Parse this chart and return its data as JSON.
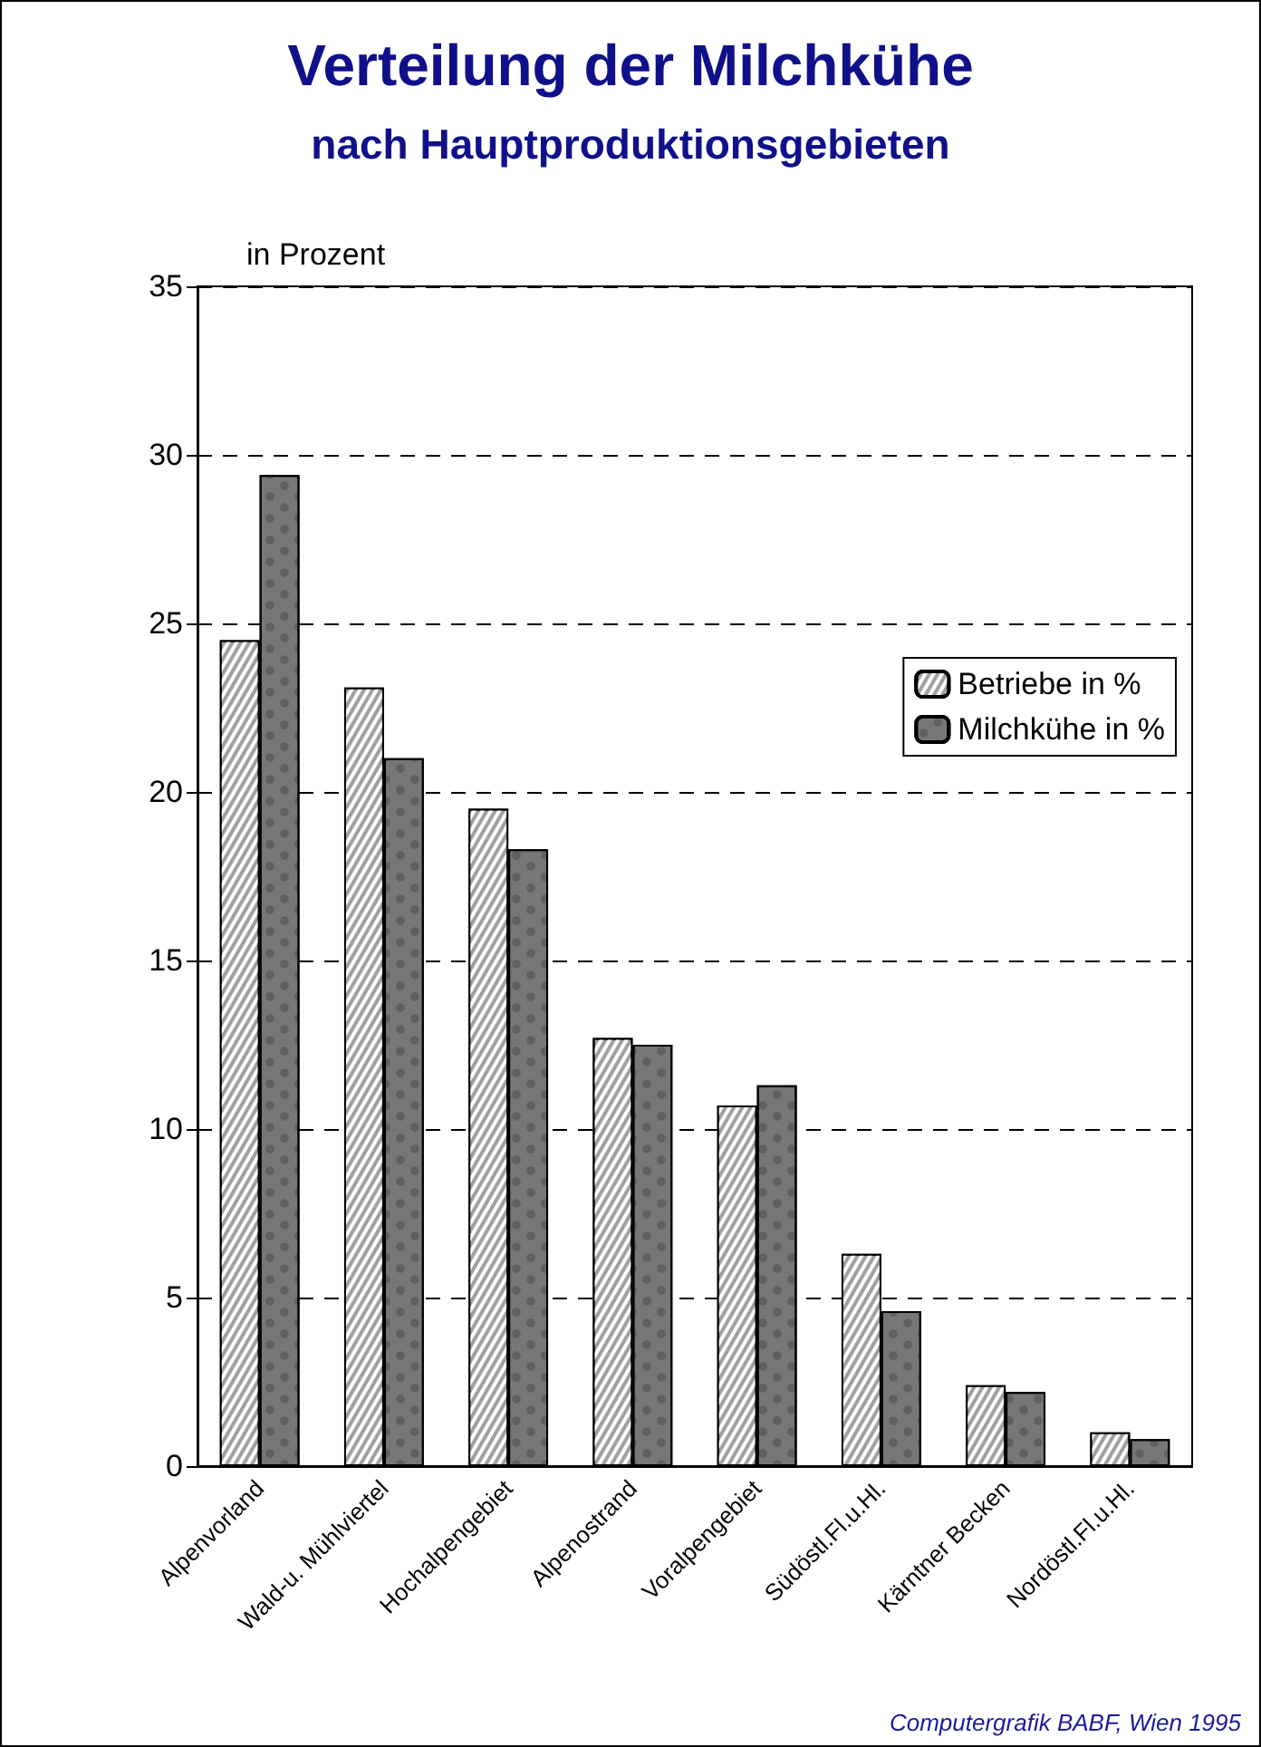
{
  "chart_data": {
    "type": "bar",
    "title": "Verteilung der Milchkühe",
    "subtitle": "nach Hauptproduktionsgebieten",
    "ylabel": "in Prozent",
    "categories": [
      "Alpenvorland",
      "Wald-u. Mühlviertel",
      "Hochalpengebiet",
      "Alpenostrand",
      "Voralpengebiet",
      "Südöstl.Fl.u.Hl.",
      "Kärntner Becken",
      "Nordöstl.Fl.u.Hl."
    ],
    "series": [
      {
        "name": "Betriebe in %",
        "color": "#a0a0a0",
        "values": [
          24.5,
          23.1,
          19.5,
          12.7,
          10.7,
          6.3,
          2.4,
          1.0
        ]
      },
      {
        "name": "Milchkühe in %",
        "color": "#777777",
        "values": [
          29.4,
          21.0,
          18.3,
          12.5,
          11.3,
          4.6,
          2.2,
          0.8
        ]
      }
    ],
    "ylim": [
      0,
      35
    ],
    "yticks": [
      0,
      5,
      10,
      15,
      20,
      25,
      30,
      35
    ],
    "grid": "y",
    "legend": "top right",
    "annotations": [
      "Computergrafik BABF, Wien 1995"
    ]
  }
}
